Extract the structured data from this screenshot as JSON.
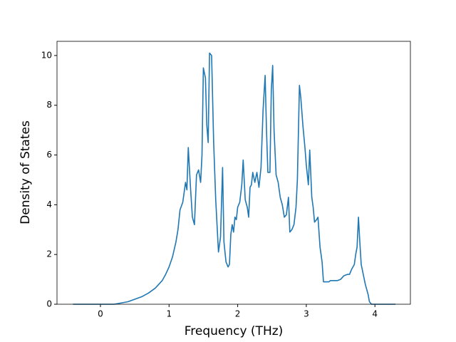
{
  "chart_data": {
    "type": "line",
    "x_label": "Frequency (THz)",
    "y_label": "Density of States",
    "xlim": [
      -0.633,
      4.517
    ],
    "ylim": [
      0,
      10.57
    ],
    "xticks": [
      0,
      1,
      2,
      3,
      4
    ],
    "yticks": [
      0,
      2,
      4,
      6,
      8,
      10
    ],
    "series": [
      {
        "color": "#1f77b4",
        "x": [
          -0.4,
          0.2,
          0.3,
          0.4,
          0.5,
          0.6,
          0.7,
          0.8,
          0.9,
          0.95,
          1.0,
          1.05,
          1.1,
          1.13,
          1.16,
          1.2,
          1.24,
          1.26,
          1.28,
          1.31,
          1.34,
          1.37,
          1.4,
          1.43,
          1.46,
          1.48,
          1.5,
          1.53,
          1.55,
          1.57,
          1.59,
          1.62,
          1.65,
          1.68,
          1.72,
          1.75,
          1.78,
          1.8,
          1.83,
          1.86,
          1.88,
          1.9,
          1.92,
          1.94,
          1.96,
          1.98,
          2.0,
          2.03,
          2.06,
          2.08,
          2.11,
          2.14,
          2.16,
          2.18,
          2.2,
          2.22,
          2.25,
          2.28,
          2.31,
          2.34,
          2.37,
          2.4,
          2.42,
          2.44,
          2.47,
          2.49,
          2.51,
          2.53,
          2.56,
          2.59,
          2.62,
          2.65,
          2.68,
          2.71,
          2.74,
          2.76,
          2.79,
          2.82,
          2.85,
          2.87,
          2.9,
          2.92,
          2.95,
          2.98,
          3.0,
          3.03,
          3.05,
          3.08,
          3.1,
          3.12,
          3.15,
          3.17,
          3.2,
          3.23,
          3.25,
          3.3,
          3.33,
          3.35,
          3.45,
          3.5,
          3.55,
          3.6,
          3.63,
          3.66,
          3.7,
          3.72,
          3.74,
          3.76,
          3.78,
          3.8,
          3.83,
          3.86,
          3.9,
          3.92,
          3.95,
          4.3
        ],
        "values": [
          0,
          0,
          0.05,
          0.1,
          0.2,
          0.3,
          0.45,
          0.65,
          0.95,
          1.2,
          1.5,
          1.9,
          2.5,
          3.0,
          3.8,
          4.1,
          4.9,
          4.6,
          6.3,
          4.8,
          3.5,
          3.2,
          5.2,
          5.4,
          4.9,
          6.0,
          9.5,
          9.1,
          7.2,
          6.5,
          10.1,
          10.0,
          6.5,
          4.2,
          2.1,
          2.7,
          5.5,
          2.5,
          1.7,
          1.5,
          1.6,
          2.8,
          3.2,
          2.9,
          3.5,
          3.4,
          3.9,
          4.1,
          4.8,
          5.8,
          4.2,
          3.9,
          3.5,
          4.7,
          4.8,
          5.3,
          4.9,
          5.3,
          4.7,
          5.5,
          7.8,
          9.2,
          7.0,
          5.3,
          5.3,
          8.6,
          9.6,
          7.0,
          5.2,
          4.9,
          4.3,
          4.0,
          3.5,
          3.6,
          4.3,
          2.9,
          3.0,
          3.2,
          3.9,
          5.0,
          8.8,
          8.3,
          7.2,
          6.3,
          5.6,
          4.8,
          6.2,
          4.3,
          3.9,
          3.3,
          3.4,
          3.5,
          2.3,
          1.7,
          0.9,
          0.9,
          0.9,
          0.95,
          0.95,
          1.0,
          1.15,
          1.2,
          1.2,
          1.4,
          1.6,
          2.0,
          2.3,
          3.5,
          2.5,
          1.6,
          1.2,
          0.8,
          0.4,
          0.1,
          0,
          0
        ]
      }
    ]
  }
}
